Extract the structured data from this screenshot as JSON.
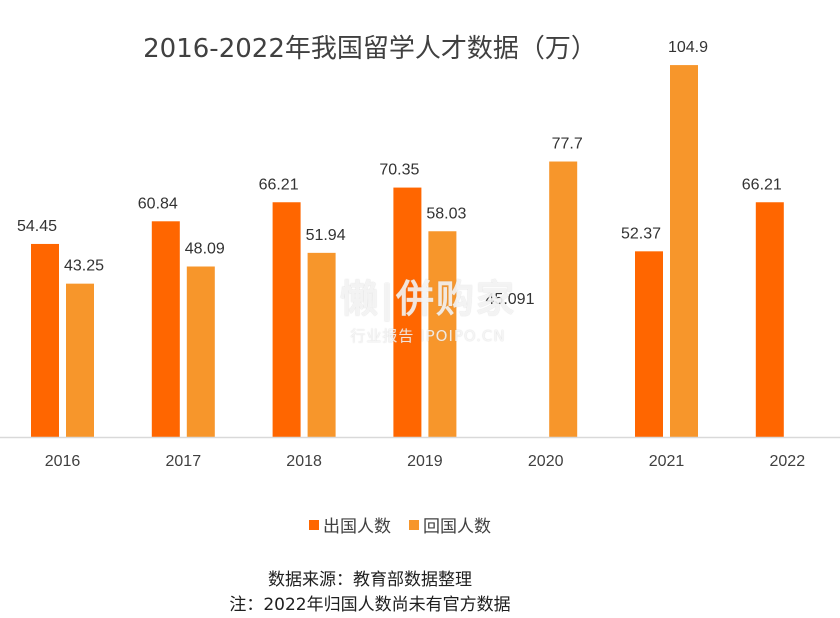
{
  "chart_data": {
    "type": "bar",
    "title": "2016-2022年我国留学人才数据（万）",
    "categories": [
      "2016",
      "2017",
      "2018",
      "2019",
      "2020",
      "2021",
      "2022"
    ],
    "series": [
      {
        "name": "出国人数",
        "values": [
          54.45,
          60.84,
          66.21,
          70.35,
          null,
          52.37,
          66.21
        ],
        "labels": [
          "54.45",
          "60.84",
          "66.21",
          "70.35",
          "",
          "52.37",
          "66.21"
        ],
        "color": "#ff6600"
      },
      {
        "name": "回国人数",
        "values": [
          43.25,
          48.09,
          51.94,
          58.03,
          77.7,
          104.9,
          null
        ],
        "labels": [
          "43.25",
          "48.09",
          "51.94",
          "58.03",
          "77.7",
          "104.9",
          ""
        ],
        "color": "#f7962b"
      }
    ],
    "annotations": [
      "45.091"
    ],
    "ylim": [
      0,
      110
    ],
    "grid": false,
    "legend": "bottom"
  },
  "footer": {
    "source": "数据来源：教育部数据整理",
    "note": "注：2022年归国人数尚未有官方数据"
  },
  "watermark": {
    "main": "懒|併购家",
    "sub": "行业报告 IPOIPO.CN"
  }
}
